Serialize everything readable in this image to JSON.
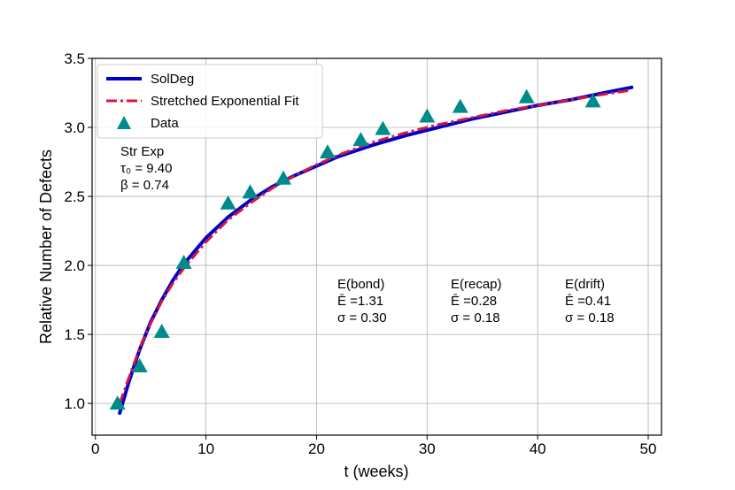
{
  "chart_data": {
    "type": "line",
    "xlabel": "t (weeks)",
    "ylabel": "Relative Number of Defects",
    "xlim": [
      -0.3,
      51.2
    ],
    "ylim": [
      0.77,
      3.5
    ],
    "xticks": [
      0,
      10,
      20,
      30,
      40,
      50
    ],
    "yticks": [
      1.0,
      1.5,
      2.0,
      2.5,
      3.0,
      3.5
    ],
    "grid": true,
    "legend": {
      "location": "top-left",
      "entries": [
        {
          "label": "SolDeg",
          "style": "solid-line",
          "color": "#0000cc"
        },
        {
          "label": "Stretched Exponential Fit",
          "style": "dash-dot-line",
          "color": "#dc143c"
        },
        {
          "label": "Data",
          "style": "triangle-marker",
          "color": "#008b8b"
        }
      ]
    },
    "series": [
      {
        "name": "Data",
        "kind": "scatter",
        "color": "#008b8b",
        "x": [
          2,
          4,
          6,
          8,
          12,
          14,
          17,
          21,
          24,
          26,
          30,
          33,
          39,
          45
        ],
        "y": [
          1.0,
          1.27,
          1.52,
          2.02,
          2.45,
          2.53,
          2.63,
          2.82,
          2.91,
          2.99,
          3.08,
          3.15,
          3.22,
          3.19
        ]
      },
      {
        "name": "SolDeg",
        "kind": "line",
        "color": "#0000cc",
        "x": [
          2.2,
          3,
          4,
          5,
          6,
          7,
          8,
          10,
          12,
          14,
          16,
          18,
          20,
          22,
          25,
          28,
          31,
          34,
          37,
          40,
          43,
          46,
          48.5
        ],
        "y": [
          0.93,
          1.15,
          1.39,
          1.59,
          1.75,
          1.89,
          2.01,
          2.2,
          2.35,
          2.47,
          2.57,
          2.65,
          2.72,
          2.79,
          2.87,
          2.94,
          3.0,
          3.06,
          3.11,
          3.16,
          3.2,
          3.25,
          3.29
        ]
      },
      {
        "name": "Stretched Exponential Fit",
        "kind": "line",
        "color": "#dc143c",
        "x": [
          2.2,
          3,
          4,
          5,
          6,
          7,
          8,
          10,
          12,
          14,
          16,
          18,
          20,
          22,
          25,
          28,
          31,
          34,
          37,
          40,
          43,
          46,
          48.5
        ],
        "y": [
          1.0,
          1.18,
          1.4,
          1.58,
          1.74,
          1.87,
          1.98,
          2.17,
          2.33,
          2.45,
          2.56,
          2.65,
          2.73,
          2.8,
          2.89,
          2.96,
          3.02,
          3.07,
          3.12,
          3.16,
          3.2,
          3.24,
          3.27
        ]
      }
    ],
    "annotations": [
      {
        "lines": [
          "Str Exp",
          "τ₀ = 9.40",
          "β = 0.74"
        ]
      },
      {
        "lines": [
          "E(bond)",
          "Ē =1.31",
          "σ = 0.30"
        ]
      },
      {
        "lines": [
          "E(recap)",
          "Ē =0.28",
          "σ = 0.18"
        ]
      },
      {
        "lines": [
          "E(drift)",
          "Ē =0.41",
          "σ = 0.18"
        ]
      }
    ]
  }
}
